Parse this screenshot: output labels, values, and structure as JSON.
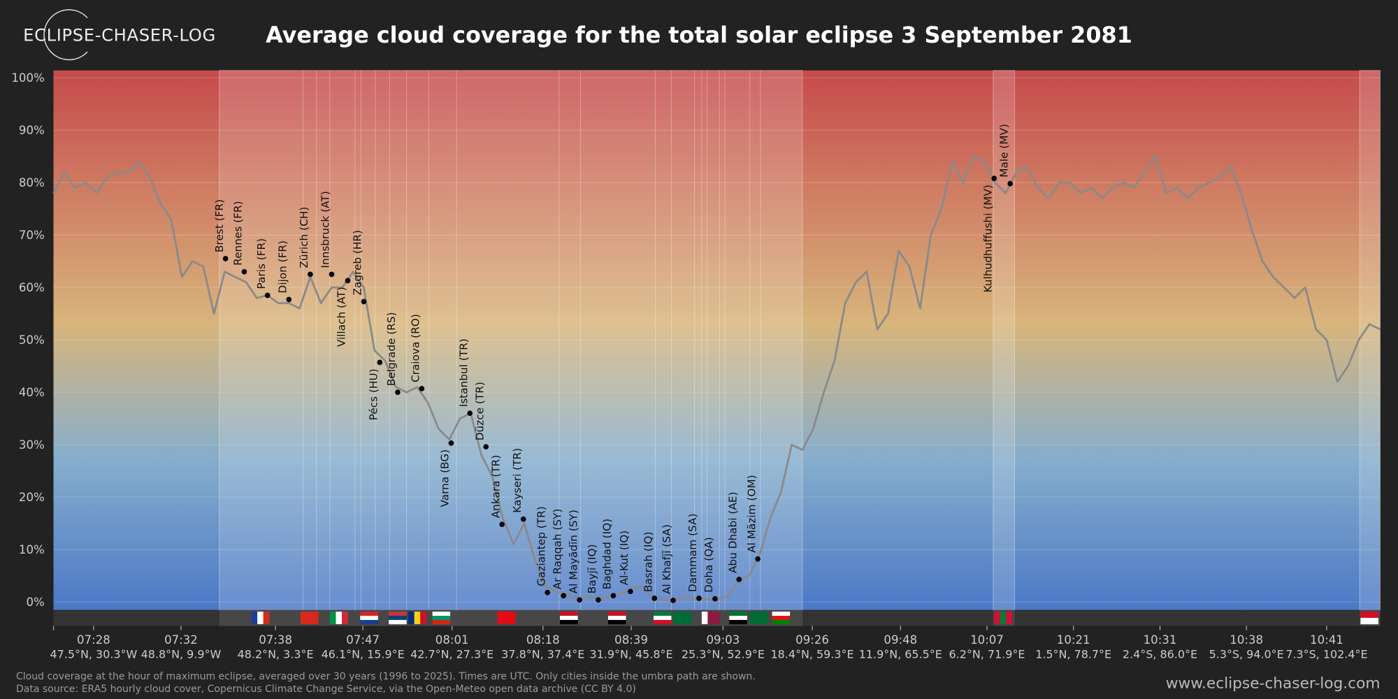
{
  "brand": "ECLIPSE-CHASER-LOG",
  "chart_data": {
    "type": "line",
    "title": "Average cloud coverage for the total solar eclipse 3 September 2081",
    "x": [
      0,
      1,
      2,
      3,
      4,
      5,
      6,
      7,
      8,
      9,
      10,
      11,
      12,
      13,
      14,
      15,
      16,
      17,
      18,
      19,
      20,
      21,
      22,
      23,
      24,
      25,
      26,
      27,
      28,
      29,
      30,
      31,
      32,
      33,
      34,
      35,
      36,
      37,
      38,
      39,
      40,
      41,
      42,
      43,
      44,
      45,
      46,
      47,
      48,
      49,
      50,
      51,
      52,
      53,
      54,
      55,
      56,
      57,
      58,
      59,
      60,
      61,
      62,
      63,
      64,
      65,
      66,
      67,
      68,
      69,
      70,
      71,
      72,
      73,
      74,
      75,
      76,
      77,
      78,
      79,
      80,
      81,
      82,
      83,
      84,
      85,
      86,
      87,
      88,
      89,
      90,
      91,
      92,
      93,
      94,
      95,
      96,
      97,
      98,
      99,
      100,
      101,
      102,
      103,
      104,
      105,
      106,
      107,
      108,
      109,
      110,
      111,
      112,
      113,
      114,
      115,
      116,
      117,
      118,
      119,
      120,
      121,
      122,
      123,
      124
    ],
    "series": [
      {
        "color": "#8a8a8a",
        "values": [
          78,
          82,
          79,
          80,
          78,
          81,
          82,
          82,
          84,
          81,
          76,
          73,
          62,
          65,
          64,
          55,
          63,
          62,
          61,
          58,
          58.5,
          57,
          57,
          56,
          62,
          57,
          60,
          60,
          63,
          60,
          48,
          46,
          41,
          40,
          41,
          38,
          33,
          31,
          35,
          36,
          28,
          24,
          16,
          11,
          15,
          8,
          3,
          2,
          1.5,
          0.5,
          1,
          0.5,
          1,
          1.5,
          2.5,
          3,
          1,
          0.5,
          0.3,
          1,
          0.5,
          0.5,
          0.5,
          1,
          4,
          5,
          9,
          16,
          21,
          30,
          29,
          33,
          40,
          46,
          57,
          61,
          63,
          52,
          55,
          67,
          64,
          56,
          70,
          75,
          84,
          80,
          85,
          84,
          80,
          78,
          82,
          83,
          79,
          77,
          80,
          80,
          78,
          79,
          77,
          79,
          80,
          79,
          82,
          85,
          78,
          79,
          77,
          79,
          80,
          81,
          83,
          78,
          71,
          65,
          62,
          60,
          58,
          60,
          52,
          50,
          42,
          45,
          50,
          53,
          52
        ]
      }
    ],
    "xlim": [
      0,
      124
    ],
    "ylim": [
      -1.5,
      101.4
    ],
    "yticks": [
      {
        "value": 0,
        "label": "0%"
      },
      {
        "value": 10,
        "label": "10%"
      },
      {
        "value": 20,
        "label": "20%"
      },
      {
        "value": 30,
        "label": "30%"
      },
      {
        "value": 40,
        "label": "40%"
      },
      {
        "value": 50,
        "label": "50%"
      },
      {
        "value": 60,
        "label": "60%"
      },
      {
        "value": 70,
        "label": "70%"
      },
      {
        "value": 80,
        "label": "80%"
      },
      {
        "value": 90,
        "label": "90%"
      },
      {
        "value": 100,
        "label": "100%"
      }
    ],
    "xticks": [
      {
        "value": 3.75,
        "label": "07:28"
      },
      {
        "value": 11.92,
        "label": "07:32"
      },
      {
        "value": 20.75,
        "label": "07:38"
      },
      {
        "value": 28.92,
        "label": "07:47"
      },
      {
        "value": 37.25,
        "label": "08:01"
      },
      {
        "value": 45.75,
        "label": "08:18"
      },
      {
        "value": 54,
        "label": "08:39"
      },
      {
        "value": 62.58,
        "label": "09:03"
      },
      {
        "value": 70.92,
        "label": "09:26"
      },
      {
        "value": 79.17,
        "label": "09:48"
      },
      {
        "value": 87.25,
        "label": "10:07"
      },
      {
        "value": 95.33,
        "label": "10:21"
      },
      {
        "value": 103.42,
        "label": "10:31"
      },
      {
        "value": 111.5,
        "label": "10:38"
      },
      {
        "value": 119,
        "label": "10:41"
      }
    ],
    "xtick_coords": [
      "47.5°N, 30.3°W",
      "48.8°N, 9.9°W",
      "48.2°N, 3.3°E",
      "46.1°N, 15.9°E",
      "42.7°N, 27.3°E",
      "37.8°N, 37.4°E",
      "31.9°N, 45.8°E",
      "25.3°N, 52.9°E",
      "18.4°N, 59.3°E",
      "11.9°N, 65.5°E",
      "6.2°N, 71.9°E",
      "1.5°N, 78.7°E",
      "2.4°S, 86.0°E",
      "5.3°S, 94.0°E",
      "7.3°S, 102.4°E"
    ],
    "grid": true,
    "background_colors": [
      "#c64a4c",
      "#d8b57c",
      "#86aecc",
      "#4b78c6"
    ],
    "bands": [
      [
        15.5,
        70
      ],
      [
        87.83,
        89.83
      ],
      [
        122.08,
        124
      ]
    ],
    "borders": [
      23.33,
      24.58,
      25.83,
      28.17,
      28.75,
      30.08,
      31.42,
      33,
      35.08,
      37.67,
      47.25,
      49.25,
      56.25,
      57.75,
      59.92,
      60.58,
      61.08,
      62.25,
      62.75,
      65.08,
      66.08
    ],
    "cities": [
      {
        "name": "Brest (FR)",
        "x": 16.08,
        "value": 65.5,
        "side": "above"
      },
      {
        "name": "Rennes (FR)",
        "x": 17.83,
        "value": 63,
        "side": "above"
      },
      {
        "name": "Paris (FR)",
        "x": 20,
        "value": 58.5,
        "side": "above"
      },
      {
        "name": "Dijon (FR)",
        "x": 22,
        "value": 57.7,
        "side": "above"
      },
      {
        "name": "Zürich (CH)",
        "x": 24,
        "value": 62.5,
        "side": "above"
      },
      {
        "name": "Innsbruck (AT)",
        "x": 26,
        "value": 62.5,
        "side": "above"
      },
      {
        "name": "Villach (AT)",
        "x": 27.5,
        "value": 61.3,
        "side": "below"
      },
      {
        "name": "Zagreb (HR)",
        "x": 29,
        "value": 57.3,
        "side": "above"
      },
      {
        "name": "Pécs (HU)",
        "x": 30.5,
        "value": 45.7,
        "side": "below"
      },
      {
        "name": "Belgrade (RS)",
        "x": 32.17,
        "value": 40,
        "side": "above"
      },
      {
        "name": "Craiova (RO)",
        "x": 34.42,
        "value": 40.7,
        "side": "above"
      },
      {
        "name": "Varna (BG)",
        "x": 37.17,
        "value": 30.3,
        "side": "below"
      },
      {
        "name": "Istanbul (TR)",
        "x": 38.92,
        "value": 36,
        "side": "above"
      },
      {
        "name": "Düzce (TR)",
        "x": 40.42,
        "value": 29.6,
        "side": "above"
      },
      {
        "name": "Ankara (TR)",
        "x": 41.92,
        "value": 14.8,
        "side": "above"
      },
      {
        "name": "Kayseri (TR)",
        "x": 43.92,
        "value": 15.8,
        "side": "above"
      },
      {
        "name": "Gaziantep (TR)",
        "x": 46.17,
        "value": 1.8,
        "side": "above"
      },
      {
        "name": "Ar Raqqah (SY)",
        "x": 47.67,
        "value": 1.2,
        "side": "above"
      },
      {
        "name": "Al Mayādīn (SY)",
        "x": 49.17,
        "value": 0.4,
        "side": "above"
      },
      {
        "name": "Bayjī (IQ)",
        "x": 50.92,
        "value": 0.4,
        "side": "above"
      },
      {
        "name": "Baghdad (IQ)",
        "x": 52.33,
        "value": 1.2,
        "side": "above"
      },
      {
        "name": "Al-Kut (IQ)",
        "x": 53.92,
        "value": 2,
        "side": "above"
      },
      {
        "name": "Basrah (IQ)",
        "x": 56.17,
        "value": 0.7,
        "side": "above"
      },
      {
        "name": "Al Khafjī (SA)",
        "x": 57.92,
        "value": 0.3,
        "side": "above"
      },
      {
        "name": "Dammam (SA)",
        "x": 60.33,
        "value": 0.7,
        "side": "above"
      },
      {
        "name": "Doha (QA)",
        "x": 61.83,
        "value": 0.6,
        "side": "above"
      },
      {
        "name": "Abu Dhabi (AE)",
        "x": 64.08,
        "value": 4.3,
        "side": "above"
      },
      {
        "name": "Al Māzim (OM)",
        "x": 65.83,
        "value": 8.2,
        "side": "above"
      },
      {
        "name": "Kulhudhuffushi (MV)",
        "x": 87.92,
        "value": 80.8,
        "side": "below"
      },
      {
        "name": "Male (MV)",
        "x": 89.42,
        "value": 79.8,
        "side": "above"
      }
    ],
    "flags": [
      {
        "x": 19.33,
        "dir": "v",
        "stripes": [
          "#1f3c9a",
          "#ffffff",
          "#d52b1e"
        ]
      },
      {
        "x": 23.92,
        "dir": "v",
        "stripes": [
          "#da291c",
          "#da291c"
        ]
      },
      {
        "x": 26.67,
        "dir": "v",
        "stripes": [
          "#009246",
          "#ffffff",
          "#ce2b37"
        ]
      },
      {
        "x": 29.5,
        "dir": "h",
        "stripes": [
          "#d8232a",
          "#ffffff",
          "#1a3d8f"
        ]
      },
      {
        "x": 32.17,
        "dir": "h",
        "stripes": [
          "#c6363c",
          "#0c4076",
          "#ffffff"
        ]
      },
      {
        "x": 34,
        "dir": "v",
        "stripes": [
          "#002b7f",
          "#fcd116",
          "#ce1126"
        ]
      },
      {
        "x": 36.25,
        "dir": "h",
        "stripes": [
          "#ffffff",
          "#00966e",
          "#d62612"
        ]
      },
      {
        "x": 42.33,
        "dir": "v",
        "stripes": [
          "#e30a17",
          "#e30a17"
        ]
      },
      {
        "x": 48.17,
        "dir": "h",
        "stripes": [
          "#ce1126",
          "#ffffff",
          "#000000"
        ]
      },
      {
        "x": 52.67,
        "dir": "h",
        "stripes": [
          "#ce1126",
          "#ffffff",
          "#000000"
        ]
      },
      {
        "x": 56.92,
        "dir": "h",
        "stripes": [
          "#007a3d",
          "#ffffff",
          "#ce1126"
        ]
      },
      {
        "x": 58.75,
        "dir": "v",
        "stripes": [
          "#006c35",
          "#006c35"
        ]
      },
      {
        "x": 61.42,
        "dir": "v",
        "stripes": [
          "#ffffff",
          "#8d1b3d",
          "#8d1b3d"
        ]
      },
      {
        "x": 64,
        "dir": "h",
        "stripes": [
          "#00732f",
          "#ffffff",
          "#000000"
        ]
      },
      {
        "x": 65.92,
        "dir": "v",
        "stripes": [
          "#006c35",
          "#006c35"
        ]
      },
      {
        "x": 68,
        "dir": "h",
        "stripes": [
          "#ffffff",
          "#db161b",
          "#008000"
        ]
      },
      {
        "x": 88.75,
        "dir": "v",
        "stripes": [
          "#d21034",
          "#007e3a",
          "#d21034"
        ]
      },
      {
        "x": 123,
        "dir": "h",
        "stripes": [
          "#ce1126",
          "#ffffff"
        ]
      }
    ]
  },
  "footnote": [
    "Cloud coverage at the hour of maximum eclipse, averaged over 30 years (1996 to 2025). Times are UTC. Only cities inside the umbra path are shown.",
    "Data source: ERA5 hourly cloud cover, Copernicus Climate Change Service, via the Open-Meteo open data archive (CC BY 4.0)"
  ],
  "website": "www.eclipse-chaser-log.com"
}
